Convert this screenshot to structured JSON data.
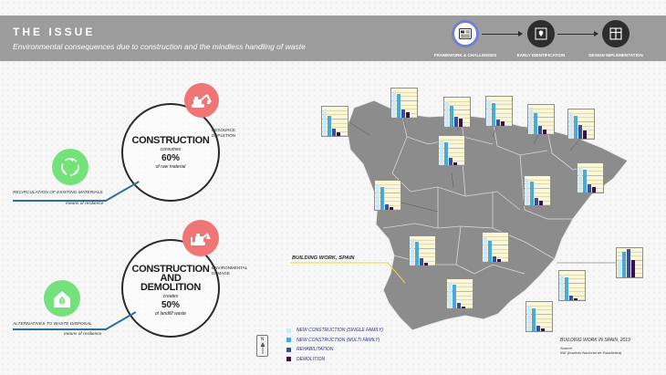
{
  "header": {
    "title": "THE ISSUE",
    "subtitle": "Environmental consequences due to construction and the mindless handling of waste",
    "steps": [
      {
        "label": "FRAMEWORK & CHALLENGES",
        "icon": "framework-icon",
        "active": true
      },
      {
        "label": "EARLY IDENTIFICATION",
        "icon": "map-pin-icon",
        "active": false
      },
      {
        "label": "DESIGN IMPLEMENTATION",
        "icon": "window-grid-icon",
        "active": false
      }
    ]
  },
  "construction": {
    "heading": "CONSTRUCTION",
    "verb": "consumes",
    "percent": "60%",
    "detail": "of raw material",
    "impact_label": "RESOURCE DEPLETION",
    "impact_icon": "excavator-icon",
    "resilience_label": "RECIRCULATION OF EXISTING MATERIALS",
    "resilience_sub": "means of resilience",
    "resilience_icon": "recycle-icon"
  },
  "demolition": {
    "heading_line1": "CONSTRUCTION",
    "heading_line2": "AND",
    "heading_line3": "DEMOLITION",
    "verb": "creates",
    "percent": "50%",
    "detail": "of landfill waste",
    "impact_label": "ENVIRONMENTAL DAMAGE",
    "impact_icon": "bulldozer-icon",
    "resilience_label": "ALTERNATIVES TO WASTE DISPOSAL",
    "resilience_sub": "means of resilience",
    "resilience_icon": "eco-house-icon"
  },
  "map": {
    "callout": "BUILDING WORK, SPAIN",
    "north": "N",
    "caption": "BUILDING WORK IN SPAIN, 2019",
    "source_line1": "Source:",
    "source_line2": "INE (Instituto Nacional de Estadística)"
  },
  "colors": {
    "new_single": "#cde8f6",
    "new_multi": "#49a9dc",
    "rehab": "#3a4f9a",
    "demolition": "#3a0f4f",
    "impact": "#f07676",
    "resilience": "#74e27a",
    "accent_line": "#2f7196"
  },
  "chart_data": {
    "type": "bar",
    "series": [
      {
        "name": "NEW CONSTRUCTION (SINGLE FAMILY)"
      },
      {
        "name": "NEW CONSTRUCTION (MULTI FAMILY)"
      },
      {
        "name": "REHABILITATION"
      },
      {
        "name": "DEMOLITION"
      }
    ],
    "regions": [
      {
        "values": [
          0.95,
          0.7,
          0.25,
          0.12
        ]
      },
      {
        "values": [
          0.95,
          0.85,
          0.3,
          0.18
        ]
      },
      {
        "values": [
          0.9,
          0.75,
          0.35,
          0.28
        ]
      },
      {
        "values": [
          0.9,
          0.8,
          0.22,
          0.15
        ]
      },
      {
        "values": [
          0.95,
          0.75,
          0.3,
          0.15
        ]
      },
      {
        "values": [
          0.95,
          0.8,
          0.5,
          0.3
        ]
      },
      {
        "values": [
          0.9,
          0.8,
          0.3,
          0.2
        ]
      },
      {
        "values": [
          0.95,
          0.85,
          0.25,
          0.15
        ]
      },
      {
        "values": [
          0.9,
          0.8,
          0.2,
          0.1
        ]
      },
      {
        "values": [
          0.9,
          0.8,
          0.25,
          0.1
        ]
      },
      {
        "values": [
          0.95,
          0.85,
          0.25,
          0.1
        ]
      },
      {
        "values": [
          0.9,
          0.75,
          0.2,
          0.1
        ]
      },
      {
        "values": [
          0.65,
          0.9,
          1.0,
          0.6
        ]
      },
      {
        "values": [
          0.9,
          0.8,
          0.15,
          0.08
        ]
      },
      {
        "values": [
          0.95,
          0.85,
          0.2,
          0.08
        ]
      },
      {
        "values": [
          0.9,
          0.8,
          0.2,
          0.1
        ]
      },
      {
        "values": [
          0.95,
          0.8,
          0.2,
          0.1
        ]
      }
    ]
  }
}
